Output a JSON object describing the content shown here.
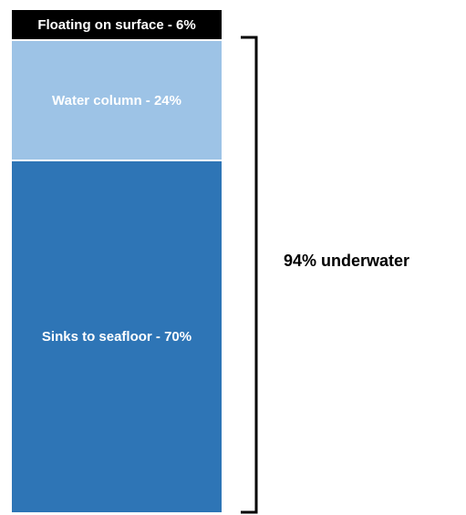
{
  "chart_data": {
    "type": "bar",
    "stacked": true,
    "categories": [
      ""
    ],
    "series": [
      {
        "name": "Floating on surface",
        "values": [
          6
        ],
        "label": "Floating on surface - 6%",
        "color": "#000000"
      },
      {
        "name": "Water column",
        "values": [
          24
        ],
        "label": "Water column - 24%",
        "color": "#9dc3e6"
      },
      {
        "name": "Sinks to seafloor",
        "values": [
          70
        ],
        "label": "Sinks to seafloor - 70%",
        "color": "#2e75b6"
      }
    ],
    "annotations": [
      {
        "text": "94% underwater",
        "spans": [
          "Water column",
          "Sinks to seafloor"
        ],
        "value": 94
      }
    ],
    "title": "",
    "xlabel": "",
    "ylabel": "",
    "ylim": [
      0,
      100
    ],
    "grid": false,
    "legend": "none"
  }
}
